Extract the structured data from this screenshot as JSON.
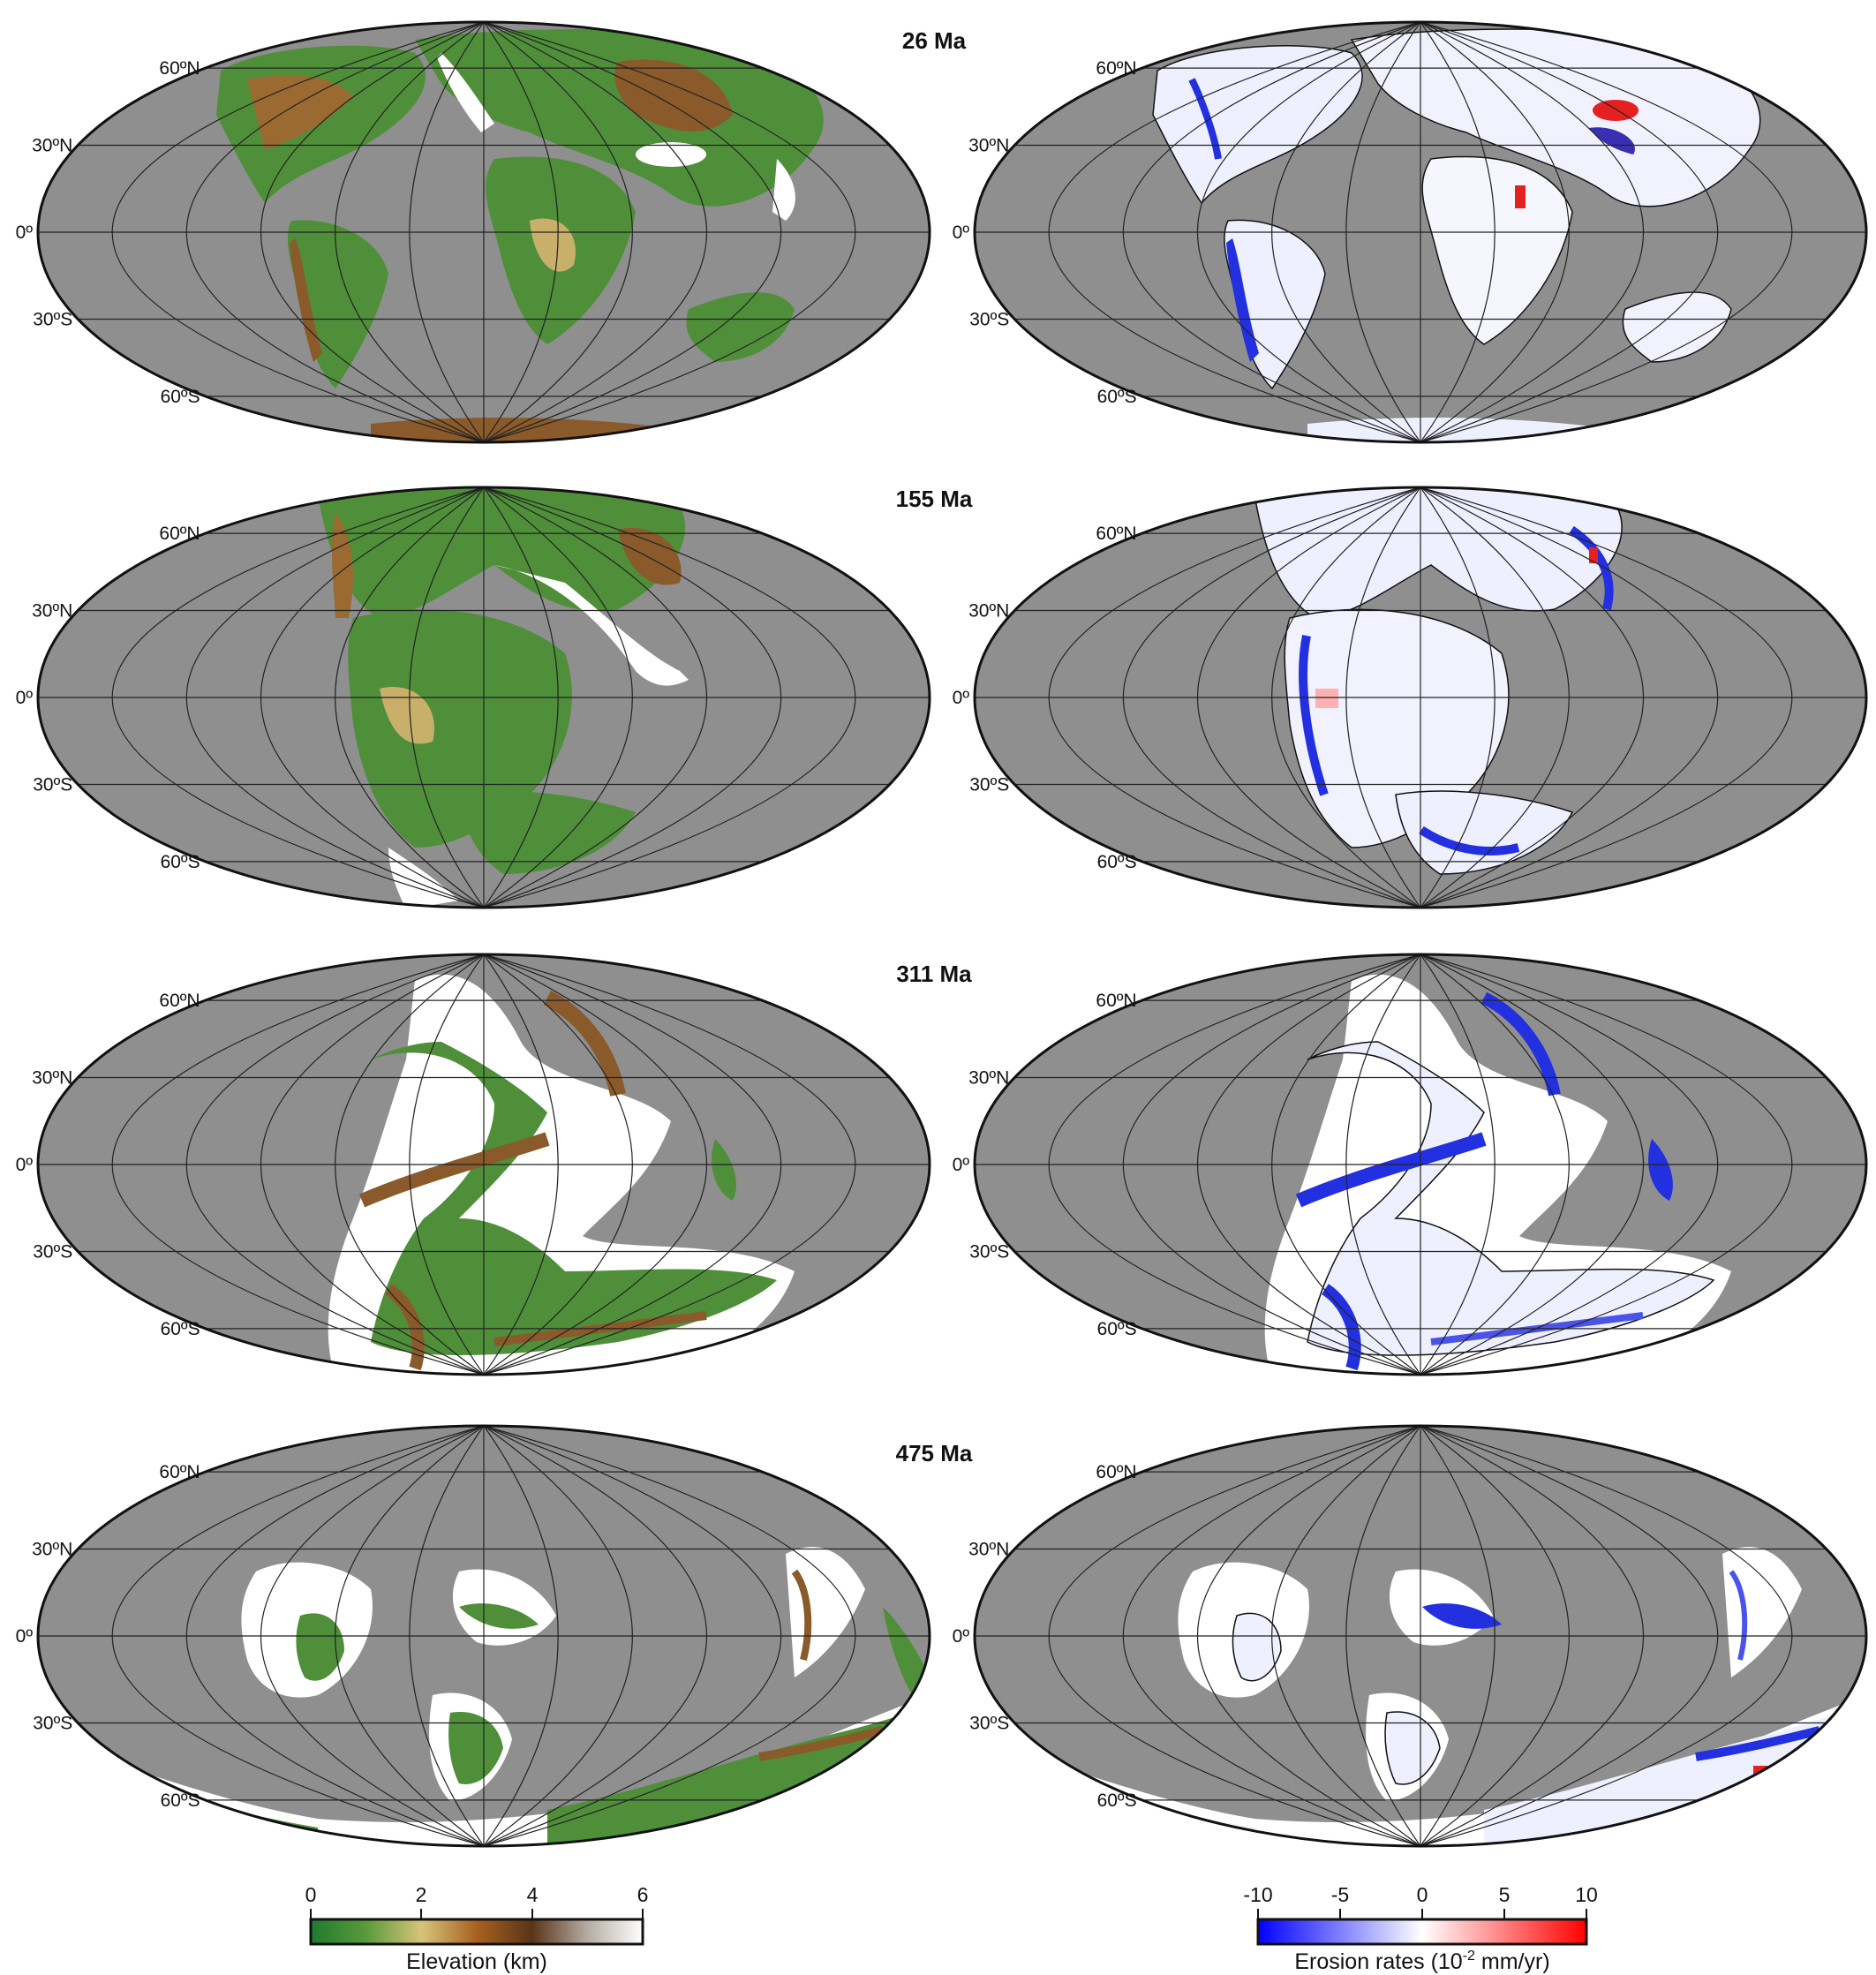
{
  "figure": {
    "panels": [
      {
        "age": "26 Ma"
      },
      {
        "age": "155 Ma"
      },
      {
        "age": "311 Ma"
      },
      {
        "age": "475 Ma"
      }
    ],
    "latitude_labels": [
      "60ºN",
      "30ºN",
      "0º",
      "30ºS",
      "60ºS"
    ],
    "elevation_colorbar": {
      "title": "Elevation (km)",
      "ticks": [
        "0",
        "2",
        "4",
        "6"
      ],
      "range": [
        0,
        6
      ],
      "colors": [
        "#1f7a2e",
        "#5a9a3a",
        "#d6c47a",
        "#a8601f",
        "#5a3418",
        "#b5aca3",
        "#ffffff"
      ]
    },
    "erosion_colorbar": {
      "title_prefix": "Erosion rates (10",
      "title_exponent": "-2",
      "title_suffix": " mm/yr)",
      "ticks": [
        "-10",
        "-5",
        "0",
        "5",
        "10"
      ],
      "range": [
        -10,
        10
      ],
      "colors": [
        "#0000ff",
        "#ffffff",
        "#ff0000"
      ]
    },
    "colors": {
      "ocean": "#8f8f8f",
      "shelf": "#ffffff",
      "land": "#4f8f3a",
      "highland": "#8a5a2a",
      "erosion_land": "#e9ecff",
      "erosion_blue": "#2230e0",
      "erosion_red": "#e52020",
      "graticule": "#222222"
    },
    "map_projection": "Mollweide"
  }
}
